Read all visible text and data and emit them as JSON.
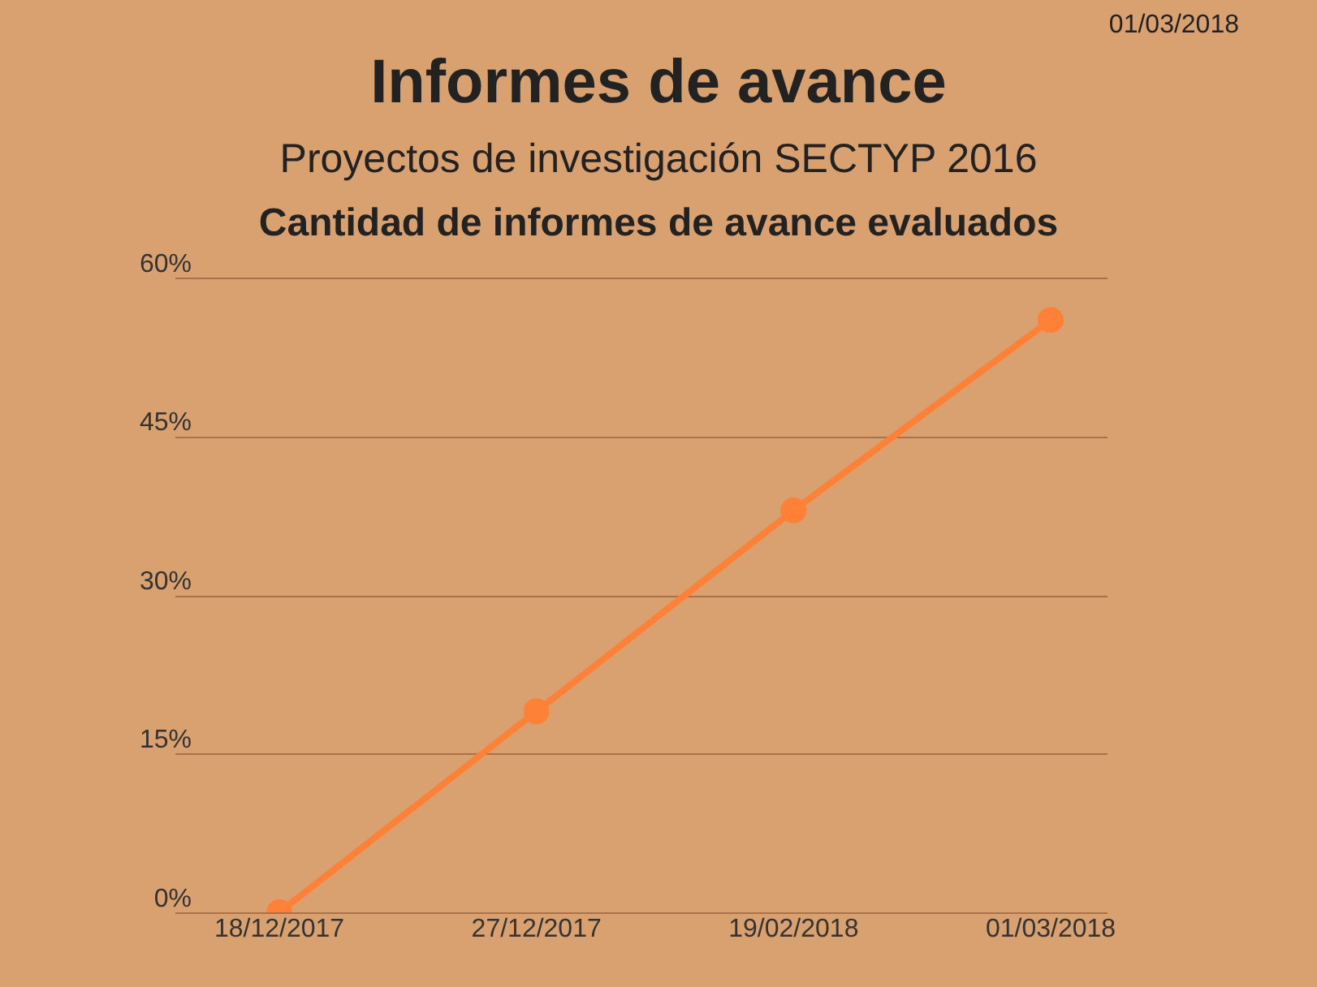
{
  "chart_data": {
    "type": "line",
    "title": "Informes de avance",
    "subtitle": "Proyectos de investigación SECTYP 2016",
    "annotations": [
      "01/03/2018",
      "Cantidad de informes de avance evaluados"
    ],
    "categories": [
      "18/12/2017",
      "27/12/2017",
      "19/02/2018",
      "01/03/2018"
    ],
    "series": [
      {
        "color": "#ff8138",
        "values": [
          0,
          19,
          38,
          56
        ]
      }
    ],
    "ylim": [
      0,
      60
    ],
    "yticks": [
      {
        "value": 0,
        "label": "0%"
      },
      {
        "value": 15,
        "label": "15%"
      },
      {
        "value": 30,
        "label": "30%"
      },
      {
        "value": 45,
        "label": "45%"
      },
      {
        "value": 60,
        "label": "60%"
      }
    ],
    "grid": "y",
    "legend": false,
    "marker": "circle",
    "line_style": "solid"
  }
}
